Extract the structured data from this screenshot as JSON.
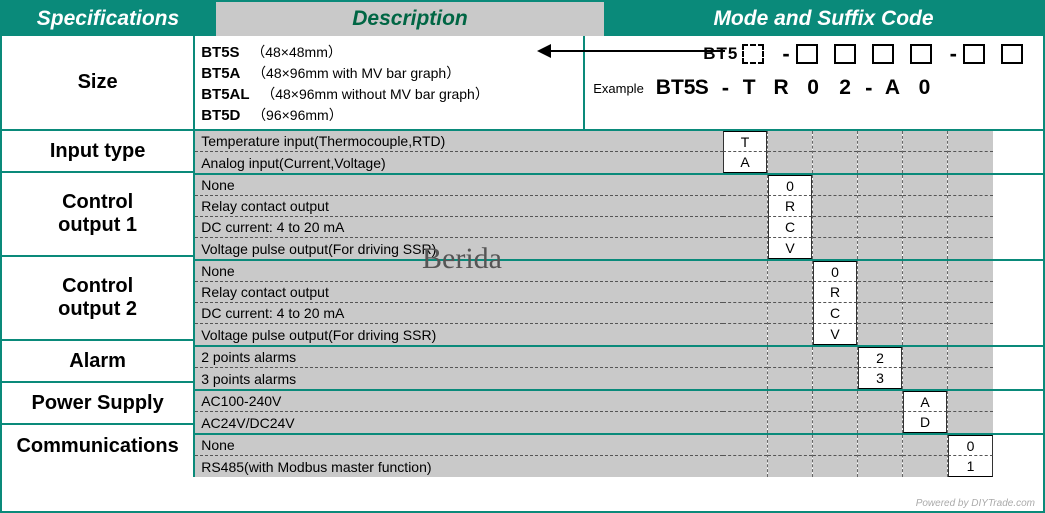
{
  "colors": {
    "teal": "#0a8a7a",
    "grey": "#c9c9c9",
    "text_header": "#ffffff",
    "text_desc_header": "#006655",
    "border": "#0a8a7a",
    "dash": "#555555"
  },
  "header": {
    "spec": "Specifications",
    "desc": "Description",
    "code": "Mode and Suffix Code"
  },
  "rows": [
    {
      "key": "size",
      "label": "Size"
    },
    {
      "key": "input",
      "label": "Input type"
    },
    {
      "key": "co1",
      "label": "Control output 1"
    },
    {
      "key": "co2",
      "label": "Control output 2"
    },
    {
      "key": "alarm",
      "label": "Alarm"
    },
    {
      "key": "power",
      "label": "Power Supply"
    },
    {
      "key": "comm",
      "label": "Communications"
    }
  ],
  "size": {
    "models": [
      {
        "code": "BT5S",
        "desc": "（48×48mm）"
      },
      {
        "code": "BT5A",
        "desc": "（48×96mm  with MV bar graph）"
      },
      {
        "code": "BT5AL",
        "desc": "（48×96mm  without MV bar graph）"
      },
      {
        "code": "BT5D",
        "desc": "（96×96mm）"
      }
    ],
    "pattern": {
      "prefix": "BT5",
      "slots": [
        "□",
        "-",
        "□",
        "□",
        "□",
        "□",
        "-",
        "□",
        "□"
      ]
    },
    "example_label": "Example",
    "example": [
      "BT5",
      "S",
      "-",
      "T",
      "R",
      "0",
      "2",
      "-",
      "A",
      "0"
    ]
  },
  "input": {
    "lines": [
      {
        "text": "Temperature input(Thermocouple,RTD)",
        "code": "T"
      },
      {
        "text": "Analog input(Current,Voltage)",
        "code": "A"
      }
    ],
    "col_index": 0
  },
  "co1": {
    "lines": [
      {
        "text": "None",
        "code": "0"
      },
      {
        "text": "Relay contact output",
        "code": "R"
      },
      {
        "text": "DC current: 4 to 20 mA",
        "code": "C"
      },
      {
        "text": "Voltage pulse output(For driving SSR)",
        "code": "V"
      }
    ],
    "col_index": 1
  },
  "co2": {
    "lines": [
      {
        "text": "None",
        "code": "0"
      },
      {
        "text": "Relay contact output",
        "code": "R"
      },
      {
        "text": "DC current: 4 to 20 mA",
        "code": "C"
      },
      {
        "text": "Voltage pulse output(For driving SSR)",
        "code": "V"
      }
    ],
    "col_index": 2
  },
  "alarm": {
    "lines": [
      {
        "text": "2 points alarms",
        "code": "2"
      },
      {
        "text": "3 points alarms",
        "code": "3"
      }
    ],
    "col_index": 3
  },
  "power": {
    "lines": [
      {
        "text": "AC100-240V",
        "code": "A"
      },
      {
        "text": "AC24V/DC24V",
        "code": "D"
      }
    ],
    "col_index": 4
  },
  "comm": {
    "lines": [
      {
        "text": "None",
        "code": "0"
      },
      {
        "text": "RS485(with Modbus master function)",
        "code": "1"
      }
    ],
    "col_index": 5
  },
  "watermark": "Berida",
  "powered": "Powered by DIYTrade.com"
}
